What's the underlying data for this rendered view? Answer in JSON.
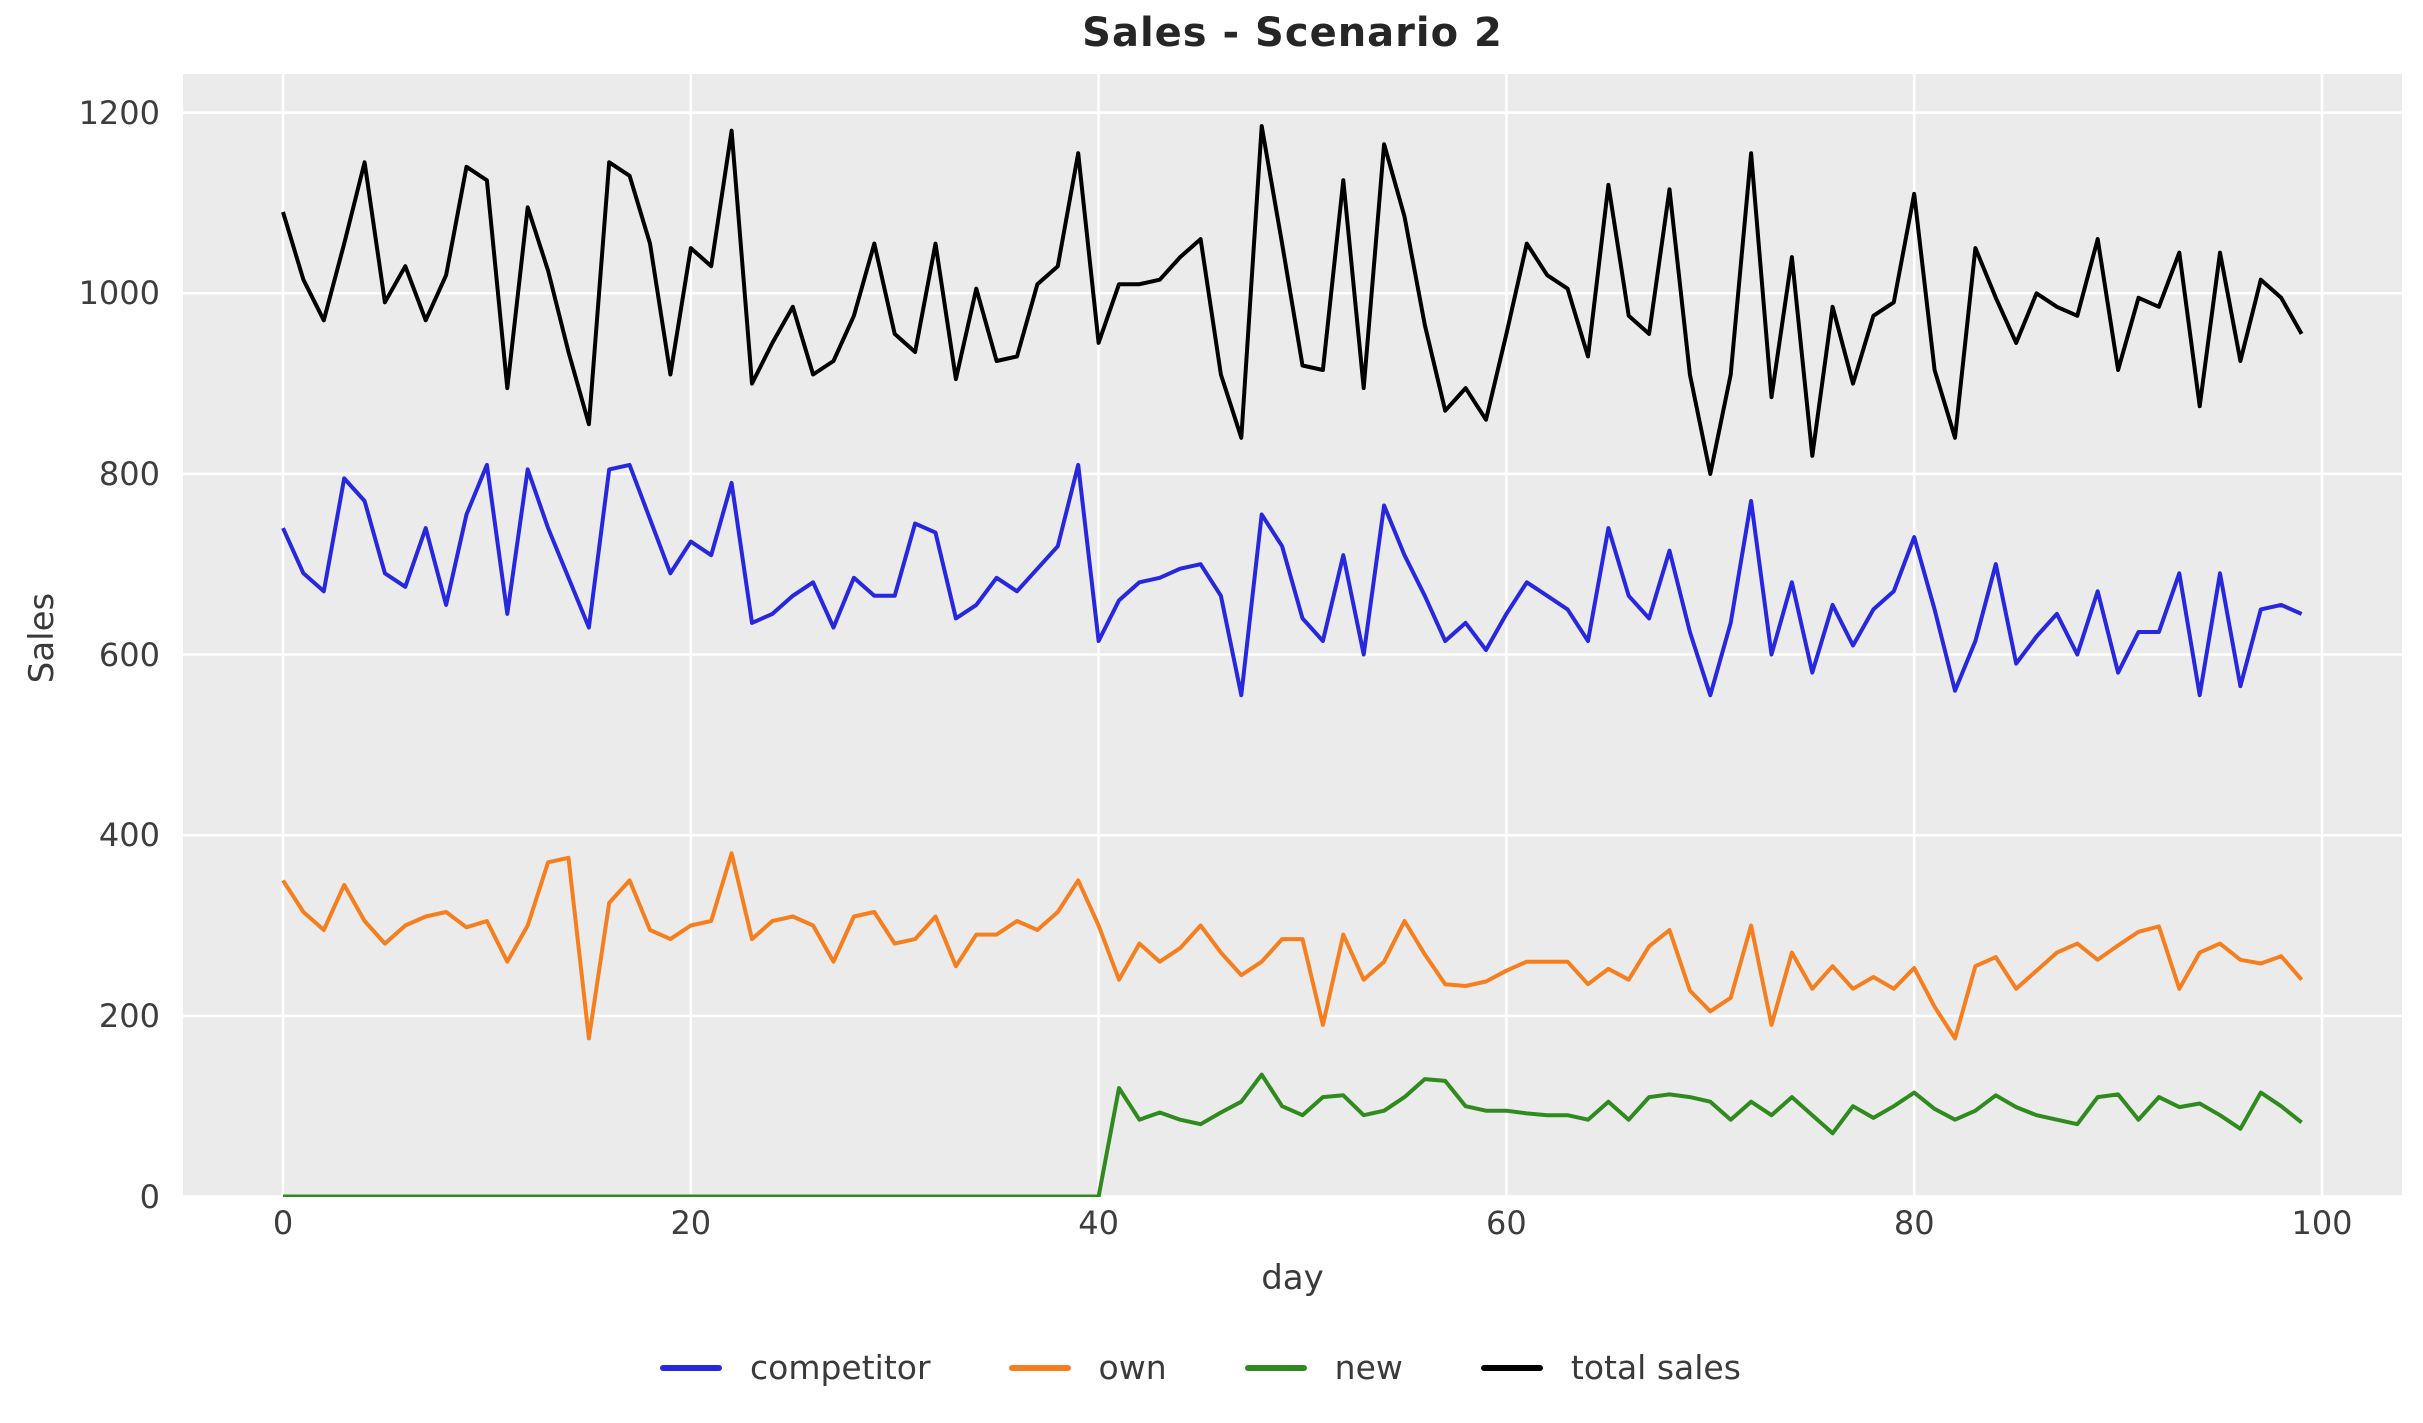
{
  "title": "Sales - Scenario 2",
  "chart_data": {
    "type": "line",
    "title": "Sales - Scenario 2",
    "xlabel": "day",
    "ylabel": "Sales",
    "x_ticks": [
      0,
      20,
      40,
      60,
      80,
      100
    ],
    "y_ticks": [
      0,
      200,
      400,
      600,
      800,
      1000,
      1200
    ],
    "ylim": [
      0,
      1243
    ],
    "xlim": [
      -4.9,
      103.9
    ],
    "grid": true,
    "background": "#ebebeb",
    "grid_color": "#ffffff",
    "legend_position": "bottom",
    "x": [
      0,
      1,
      2,
      3,
      4,
      5,
      6,
      7,
      8,
      9,
      10,
      11,
      12,
      13,
      14,
      15,
      16,
      17,
      18,
      19,
      20,
      21,
      22,
      23,
      24,
      25,
      26,
      27,
      28,
      29,
      30,
      31,
      32,
      33,
      34,
      35,
      36,
      37,
      38,
      39,
      40,
      41,
      42,
      43,
      44,
      45,
      46,
      47,
      48,
      49,
      50,
      51,
      52,
      53,
      54,
      55,
      56,
      57,
      58,
      59,
      60,
      61,
      62,
      63,
      64,
      65,
      66,
      67,
      68,
      69,
      70,
      71,
      72,
      73,
      74,
      75,
      76,
      77,
      78,
      79,
      80,
      81,
      82,
      83,
      84,
      85,
      86,
      87,
      88,
      89,
      90,
      91,
      92,
      93,
      94,
      95,
      96,
      97,
      98,
      99
    ],
    "series": [
      {
        "name": "competitor",
        "color": "#2727df",
        "values": [
          740,
          690,
          670,
          795,
          770,
          690,
          675,
          740,
          655,
          755,
          810,
          645,
          805,
          740,
          685,
          630,
          805,
          810,
          750,
          690,
          725,
          710,
          790,
          635,
          645,
          665,
          680,
          630,
          685,
          665,
          665,
          745,
          735,
          640,
          655,
          685,
          670,
          695,
          720,
          810,
          615,
          660,
          680,
          685,
          695,
          700,
          665,
          555,
          755,
          720,
          640,
          615,
          710,
          600,
          765,
          710,
          665,
          615,
          635,
          605,
          645,
          680,
          665,
          650,
          615,
          740,
          665,
          640,
          715,
          625,
          555,
          635,
          770,
          600,
          680,
          580,
          655,
          610,
          650,
          670,
          730,
          650,
          560,
          615,
          700,
          590,
          620,
          645,
          600,
          670,
          580,
          625,
          625,
          690,
          555,
          690,
          565,
          650,
          655,
          645
        ]
      },
      {
        "name": "own",
        "color": "#f57f1e",
        "values": [
          350,
          315,
          295,
          345,
          305,
          280,
          300,
          310,
          315,
          298,
          305,
          260,
          300,
          370,
          375,
          175,
          325,
          350,
          295,
          285,
          300,
          305,
          380,
          285,
          305,
          310,
          300,
          260,
          310,
          315,
          280,
          285,
          310,
          255,
          290,
          290,
          305,
          295,
          315,
          350,
          300,
          240,
          280,
          260,
          275,
          300,
          270,
          245,
          260,
          285,
          285,
          190,
          290,
          240,
          260,
          305,
          268,
          235,
          233,
          238,
          250,
          260,
          260,
          260,
          235,
          252,
          240,
          277,
          295,
          228,
          205,
          220,
          300,
          190,
          270,
          230,
          255,
          230,
          243,
          230,
          253,
          210,
          175,
          255,
          265,
          230,
          250,
          270,
          280,
          262,
          278,
          293,
          299,
          230,
          270,
          280,
          262,
          258,
          266,
          240
        ]
      },
      {
        "name": "new",
        "color": "#2f8b1e",
        "values": [
          0,
          0,
          0,
          0,
          0,
          0,
          0,
          0,
          0,
          0,
          0,
          0,
          0,
          0,
          0,
          0,
          0,
          0,
          0,
          0,
          0,
          0,
          0,
          0,
          0,
          0,
          0,
          0,
          0,
          0,
          0,
          0,
          0,
          0,
          0,
          0,
          0,
          0,
          0,
          0,
          0,
          120,
          85,
          93,
          85,
          80,
          93,
          105,
          135,
          100,
          90,
          110,
          112,
          90,
          95,
          110,
          130,
          128,
          100,
          95,
          95,
          92,
          90,
          90,
          85,
          105,
          85,
          110,
          113,
          110,
          105,
          85,
          105,
          90,
          110,
          90,
          70,
          100,
          87,
          100,
          115,
          97,
          85,
          95,
          112,
          99,
          90,
          85,
          80,
          110,
          113,
          85,
          110,
          99,
          103,
          90,
          75,
          115,
          100,
          82
        ]
      },
      {
        "name": "total sales",
        "color": "#000000",
        "values": [
          1090,
          1015,
          970,
          1055,
          1145,
          990,
          1030,
          970,
          1020,
          1140,
          1125,
          895,
          1095,
          1025,
          935,
          855,
          1145,
          1130,
          1055,
          910,
          1050,
          1030,
          1180,
          900,
          945,
          985,
          910,
          925,
          975,
          1055,
          955,
          935,
          1055,
          905,
          1005,
          925,
          930,
          1010,
          1030,
          1155,
          945,
          1010,
          1010,
          1015,
          1040,
          1060,
          910,
          840,
          1185,
          1055,
          920,
          915,
          1125,
          895,
          1165,
          1085,
          965,
          870,
          895,
          860,
          955,
          1055,
          1020,
          1005,
          930,
          1120,
          975,
          955,
          1115,
          910,
          800,
          910,
          1155,
          885,
          1040,
          820,
          985,
          900,
          975,
          990,
          1110,
          915,
          840,
          1050,
          995,
          945,
          1000,
          985,
          975,
          1060,
          915,
          995,
          985,
          1045,
          875,
          1045,
          925,
          1015,
          995,
          955
        ]
      }
    ]
  }
}
